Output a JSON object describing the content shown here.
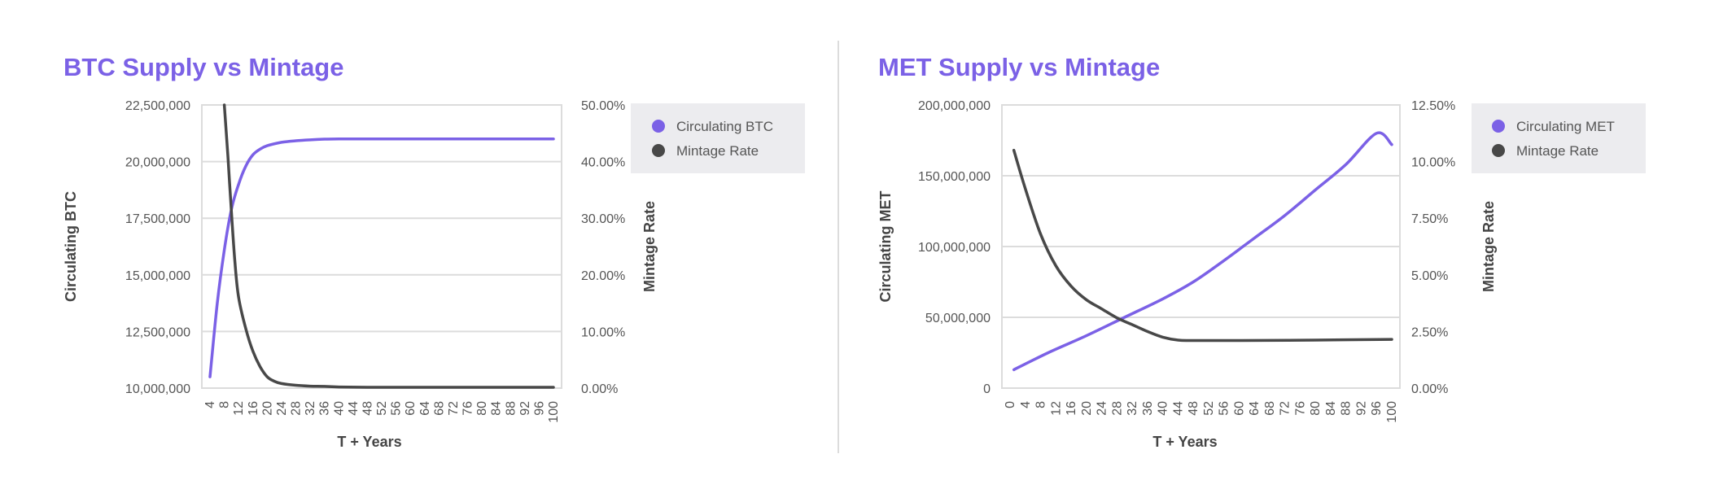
{
  "colors": {
    "accent": "#7b61e6",
    "dark": "#484848",
    "grid": "#dcdcdc",
    "legend_bg": "#ececef"
  },
  "chart_data": [
    {
      "type": "line",
      "title": "BTC Supply vs Mintage",
      "xlabel": "T + Years",
      "ylabel": "Circulating BTC",
      "y2label": "Mintage Rate",
      "xticks": [
        "4",
        "8",
        "12",
        "16",
        "20",
        "24",
        "28",
        "32",
        "36",
        "40",
        "44",
        "48",
        "52",
        "56",
        "60",
        "64",
        "68",
        "72",
        "76",
        "80",
        "84",
        "88",
        "92",
        "96",
        "100"
      ],
      "yticks": [
        "22,500,000",
        "20,000,000",
        "17,500,000",
        "15,000,000",
        "12,500,000",
        "10,000,000"
      ],
      "y2ticks": [
        "50.00%",
        "40.00%",
        "30.00%",
        "20.00%",
        "10.00%",
        "0.00%"
      ],
      "ylim": [
        10000000,
        22500000
      ],
      "y2lim": [
        0,
        50
      ],
      "xlim": [
        4,
        100
      ],
      "grid": true,
      "legend_position": "right",
      "series": [
        {
          "name": "Circulating BTC",
          "axis": "left",
          "color": "#7b61e6",
          "x": [
            4,
            6,
            8,
            10,
            12,
            14,
            16,
            18,
            20,
            24,
            28,
            32,
            36,
            40,
            48,
            60,
            80,
            100
          ],
          "values": [
            10500000,
            13700000,
            16100000,
            17900000,
            19000000,
            19800000,
            20300000,
            20550000,
            20700000,
            20850000,
            20920000,
            20960000,
            20990000,
            21000000,
            21000000,
            21000000,
            21000000,
            21000000
          ]
        },
        {
          "name": "Mintage Rate",
          "axis": "right",
          "color": "#484848",
          "x": [
            8,
            9,
            10,
            11,
            12,
            14,
            16,
            18,
            20,
            22,
            24,
            28,
            32,
            36,
            40,
            48,
            60,
            80,
            100
          ],
          "values": [
            50,
            41,
            31,
            22,
            16,
            10.5,
            6.5,
            3.8,
            2.0,
            1.2,
            0.8,
            0.5,
            0.35,
            0.3,
            0.2,
            0.15,
            0.15,
            0.15,
            0.15
          ]
        }
      ]
    },
    {
      "type": "line",
      "title": "MET Supply vs Mintage",
      "xlabel": "T + Years",
      "ylabel": "Circulating MET",
      "y2label": "Mintage Rate",
      "xticks": [
        "0",
        "4",
        "8",
        "12",
        "16",
        "20",
        "24",
        "28",
        "32",
        "36",
        "40",
        "44",
        "48",
        "52",
        "56",
        "60",
        "64",
        "68",
        "72",
        "76",
        "80",
        "84",
        "88",
        "92",
        "96",
        "100"
      ],
      "yticks": [
        "200,000,000",
        "150,000,000",
        "100,000,000",
        "50,000,000",
        "0"
      ],
      "y2ticks": [
        "12.50%",
        "10.00%",
        "7.50%",
        "5.00%",
        "2.50%",
        "0.00%"
      ],
      "ylim": [
        0,
        200000000
      ],
      "y2lim": [
        0,
        12.5
      ],
      "xlim": [
        0,
        100
      ],
      "grid": true,
      "legend_position": "right",
      "series": [
        {
          "name": "Circulating MET",
          "axis": "left",
          "color": "#7b61e6",
          "x": [
            1,
            10,
            20,
            30,
            40,
            48,
            56,
            64,
            72,
            80,
            88,
            96,
            100
          ],
          "values": [
            13000000,
            25000000,
            37000000,
            50000000,
            63000000,
            75000000,
            90000000,
            106000000,
            122000000,
            140000000,
            158000000,
            180000000,
            172000000
          ]
        },
        {
          "name": "Mintage Rate",
          "axis": "right",
          "color": "#484848",
          "x": [
            1,
            4,
            8,
            12,
            16,
            20,
            24,
            28,
            32,
            36,
            40,
            44,
            48,
            60,
            80,
            100
          ],
          "values": [
            10.5,
            8.8,
            6.8,
            5.4,
            4.5,
            3.9,
            3.5,
            3.1,
            2.8,
            2.5,
            2.25,
            2.12,
            2.1,
            2.1,
            2.12,
            2.15
          ]
        }
      ]
    }
  ]
}
